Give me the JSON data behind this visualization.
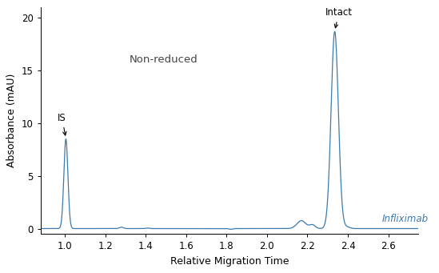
{
  "xlabel": "Relative Migration Time",
  "ylabel": "Absorbance (mAU)",
  "xlim": [
    0.88,
    2.75
  ],
  "ylim": [
    -0.5,
    21
  ],
  "yticks": [
    0,
    5,
    10,
    15,
    20
  ],
  "xticks": [
    1.0,
    1.2,
    1.4,
    1.6,
    1.8,
    2.0,
    2.2,
    2.4,
    2.6
  ],
  "line_color": "#3d7aad",
  "background_color": "#ffffff",
  "label_IS": "IS",
  "label_intact": "Intact",
  "label_infliximab": "Infliximab",
  "label_nonreduced": "Non-reduced",
  "IS_x": 1.005,
  "IS_peak": 8.5,
  "intact_x": 2.335,
  "intact_peak": 18.7,
  "figsize": [
    5.49,
    3.41
  ],
  "dpi": 100
}
